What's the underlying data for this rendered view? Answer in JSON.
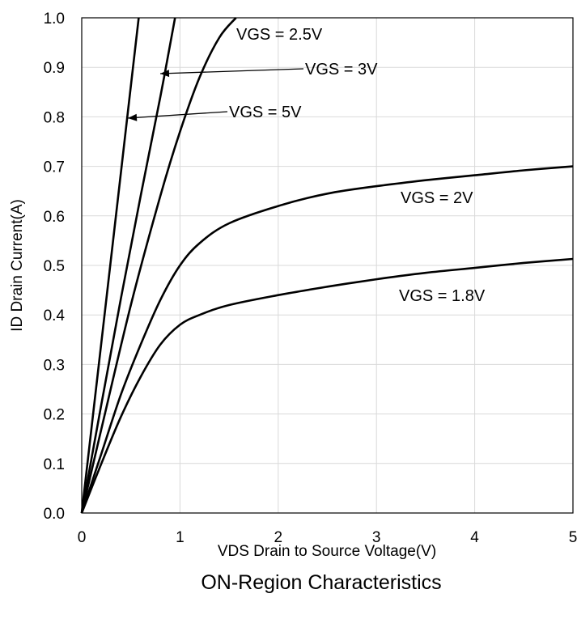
{
  "chart_data": {
    "type": "line",
    "title": "ON-Region Characteristics",
    "xlabel": "VDS Drain to Source Voltage(V)",
    "ylabel": "ID Drain Current(A)",
    "xlim": [
      0,
      5
    ],
    "ylim": [
      0,
      1.0
    ],
    "grid": true,
    "legend": "none",
    "x_ticks": [
      "0",
      "1",
      "2",
      "3",
      "4",
      "5"
    ],
    "y_ticks": [
      "0.0",
      "0.1",
      "0.2",
      "0.3",
      "0.4",
      "0.5",
      "0.6",
      "0.7",
      "0.8",
      "0.9",
      "1.0"
    ],
    "series": [
      {
        "name": "VGS = 5V",
        "x": [
          0,
          0.2,
          0.4,
          0.58
        ],
        "y": [
          0,
          0.345,
          0.69,
          1.0
        ]
      },
      {
        "name": "VGS = 3V",
        "x": [
          0,
          0.2,
          0.4,
          0.6,
          0.8,
          0.95
        ],
        "y": [
          0,
          0.22,
          0.435,
          0.64,
          0.84,
          1.0
        ]
      },
      {
        "name": "VGS = 2.5V",
        "x": [
          0,
          0.2,
          0.5,
          0.8,
          1.0,
          1.2,
          1.4,
          1.57
        ],
        "y": [
          0,
          0.17,
          0.42,
          0.64,
          0.77,
          0.88,
          0.96,
          1.0
        ]
      },
      {
        "name": "VGS = 2V",
        "x": [
          0,
          0.2,
          0.4,
          0.6,
          0.8,
          1.0,
          1.2,
          1.5,
          2.0,
          2.5,
          3.0,
          3.5,
          4.0,
          4.5,
          5.0
        ],
        "y": [
          0,
          0.12,
          0.24,
          0.34,
          0.43,
          0.5,
          0.545,
          0.585,
          0.62,
          0.645,
          0.66,
          0.672,
          0.682,
          0.692,
          0.7
        ]
      },
      {
        "name": "VGS = 1.8V",
        "x": [
          0,
          0.2,
          0.4,
          0.6,
          0.8,
          1.0,
          1.2,
          1.5,
          2.0,
          2.5,
          3.0,
          3.5,
          4.0,
          4.5,
          5.0
        ],
        "y": [
          0,
          0.1,
          0.195,
          0.275,
          0.34,
          0.38,
          0.4,
          0.42,
          0.44,
          0.457,
          0.472,
          0.485,
          0.495,
          0.505,
          0.513
        ]
      }
    ],
    "annotations": [
      {
        "text": "VGS = 2.5V",
        "series": "VGS = 2.5V",
        "arrow": false
      },
      {
        "text": "VGS = 3V",
        "series": "VGS = 3V",
        "arrow": true
      },
      {
        "text": "VGS = 5V",
        "series": "VGS = 5V",
        "arrow": true
      },
      {
        "text": "VGS = 2V",
        "series": "VGS = 2V",
        "arrow": false
      },
      {
        "text": "VGS = 1.8V",
        "series": "VGS = 1.8V",
        "arrow": false
      }
    ]
  }
}
